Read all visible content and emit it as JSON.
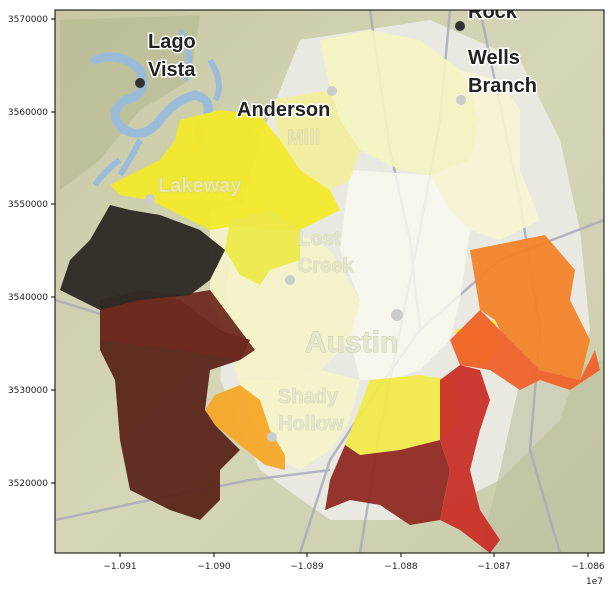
{
  "chart_data": {
    "type": "choropleth-map",
    "x_ticks": [
      "−1.091",
      "−1.090",
      "−1.089",
      "−1.088",
      "−1.087",
      "−1.086"
    ],
    "y_ticks": [
      "3570000",
      "3560000",
      "3550000",
      "3540000",
      "3530000",
      "3520000"
    ],
    "x_offset_label": "1e7",
    "place_labels": {
      "rock": "Rock",
      "wells_branch": [
        "Wells",
        "Branch"
      ],
      "lago_vista": [
        "Lago",
        "Vista"
      ],
      "anderson_mill": [
        "Anderson",
        "Mill"
      ],
      "lakeway": "Lakeway",
      "lost_creek": [
        "Lost",
        "Creek"
      ],
      "austin": "Austin",
      "shady_hollow": [
        "Shady",
        "Hollow"
      ]
    },
    "colors": {
      "darkest": "#2e241f",
      "dark_brown": "#5a221a",
      "brown_red": "#7a2a20",
      "red": "#c4302a",
      "orange_red": "#f26a2a",
      "orange": "#f59a30",
      "amber": "#f5b12a",
      "yellow": "#f2ea2a",
      "pale_yellow": "#f5f3b0",
      "cream": "#fafaf0",
      "water": "#9bbcd9",
      "terrain": "#cfcfae"
    }
  }
}
